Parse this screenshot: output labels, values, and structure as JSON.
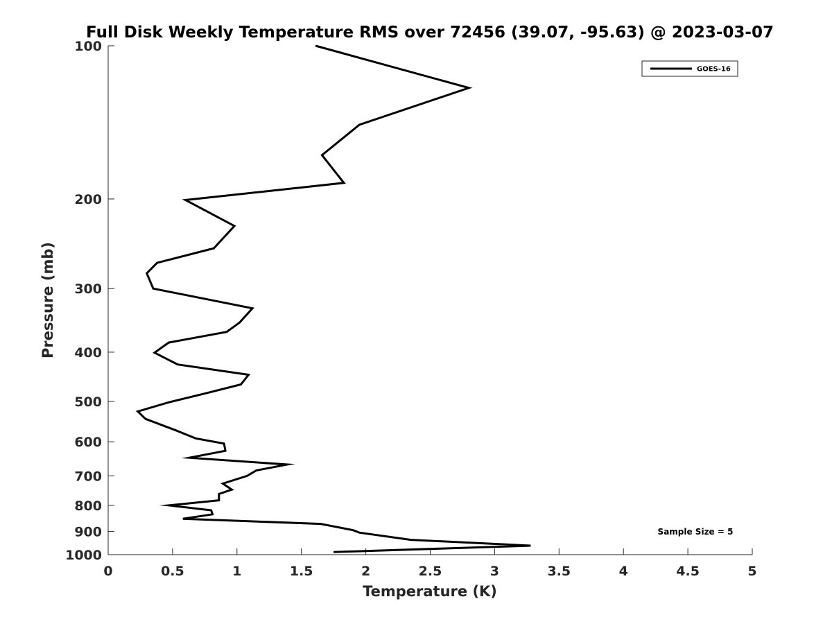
{
  "chart_data": {
    "type": "line",
    "title": "Full Disk Weekly Temperature RMS over 72456 (39.07, -95.63) @ 2023-03-07",
    "xlabel": "Temperature (K)",
    "ylabel": "Pressure (mb)",
    "xlim": [
      0,
      5
    ],
    "ylim": [
      1000,
      100
    ],
    "y_scale": "log",
    "y_reversed": true,
    "grid": false,
    "legend_position": "top-right",
    "x_ticks": [
      "0",
      "0.5",
      "1",
      "1.5",
      "2",
      "2.5",
      "3",
      "3.5",
      "4",
      "4.5",
      "5"
    ],
    "y_ticks": [
      "100",
      "200",
      "300",
      "400",
      "500",
      "600",
      "700",
      "800",
      "900",
      "1000"
    ],
    "annotation": "Sample Size = 5",
    "series": [
      {
        "name": "GOES-16",
        "color": "#000000",
        "points": [
          [
            1.61,
            100
          ],
          [
            2.8,
            121
          ],
          [
            1.95,
            143
          ],
          [
            1.66,
            164
          ],
          [
            1.83,
            186
          ],
          [
            0.6,
            201
          ],
          [
            0.98,
            226
          ],
          [
            0.82,
            250
          ],
          [
            0.38,
            267
          ],
          [
            0.3,
            280
          ],
          [
            0.35,
            300
          ],
          [
            1.12,
            328
          ],
          [
            1.02,
            350
          ],
          [
            0.92,
            365
          ],
          [
            0.47,
            383
          ],
          [
            0.36,
            401
          ],
          [
            0.54,
            423
          ],
          [
            1.09,
            443
          ],
          [
            1.03,
            463
          ],
          [
            0.77,
            481
          ],
          [
            0.47,
            502
          ],
          [
            0.23,
            523
          ],
          [
            0.29,
            541
          ],
          [
            0.52,
            569
          ],
          [
            0.68,
            591
          ],
          [
            0.9,
            605
          ],
          [
            0.91,
            625
          ],
          [
            0.63,
            645
          ],
          [
            1.39,
            665
          ],
          [
            1.15,
            683
          ],
          [
            1.08,
            700
          ],
          [
            0.89,
            725
          ],
          [
            0.96,
            745
          ],
          [
            0.86,
            760
          ],
          [
            0.86,
            782
          ],
          [
            0.47,
            800
          ],
          [
            0.8,
            818
          ],
          [
            0.81,
            833
          ],
          [
            0.58,
            850
          ],
          [
            1.65,
            870
          ],
          [
            1.9,
            895
          ],
          [
            1.95,
            905
          ],
          [
            2.35,
            935
          ],
          [
            3.28,
            960
          ],
          [
            1.75,
            988
          ]
        ]
      }
    ]
  }
}
